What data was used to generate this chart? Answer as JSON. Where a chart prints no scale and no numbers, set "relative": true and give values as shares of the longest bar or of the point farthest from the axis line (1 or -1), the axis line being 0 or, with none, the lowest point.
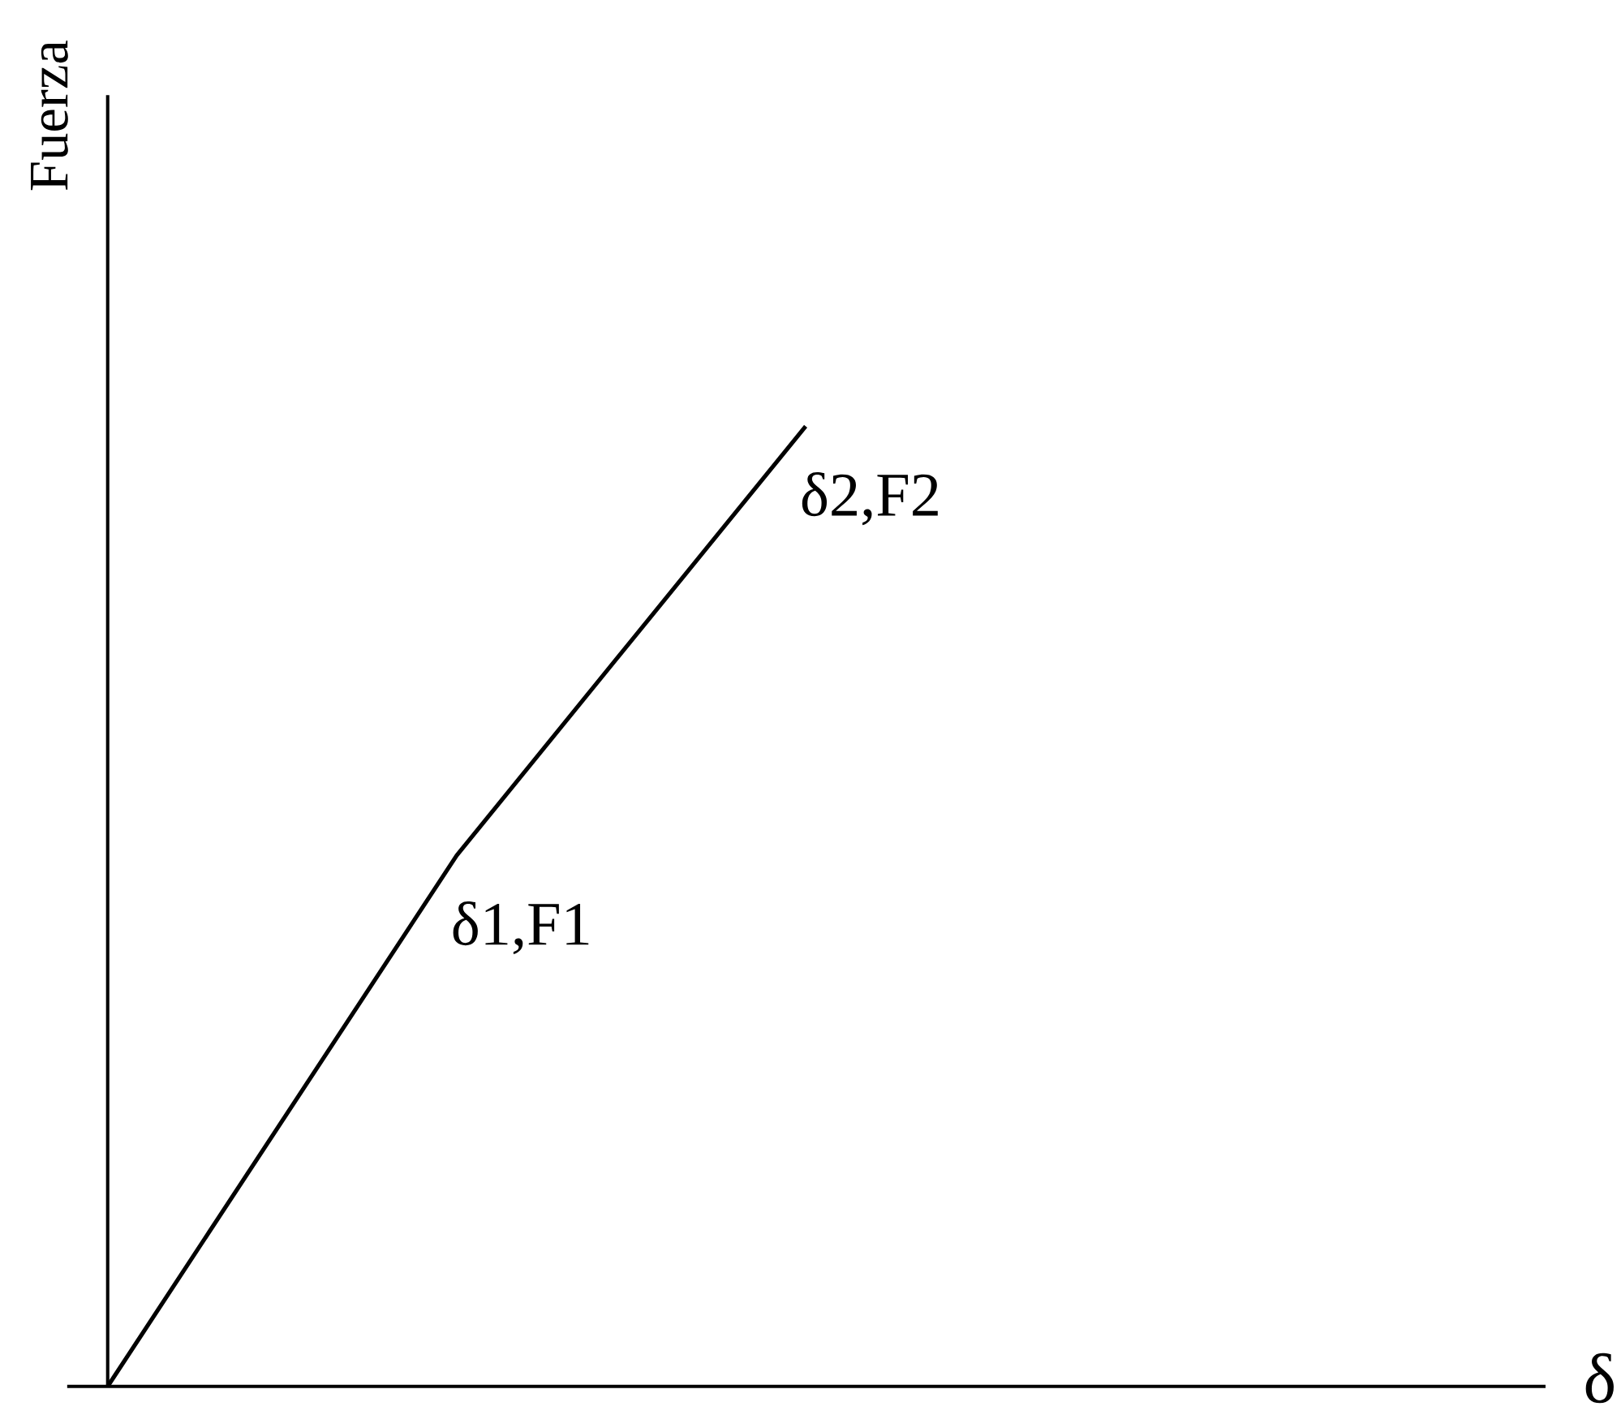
{
  "chart_data": {
    "type": "line",
    "relative": true,
    "categories": [
      null,
      null,
      null
    ],
    "series": [
      {
        "color": "#000000",
        "values": [
          0,
          0.553,
          1
        ]
      }
    ],
    "ylabel": "Fuerza",
    "annotations": [
      "δ1,F1",
      "δ2,F2",
      "δ"
    ],
    "marker": "none",
    "line_style": "solid"
  }
}
